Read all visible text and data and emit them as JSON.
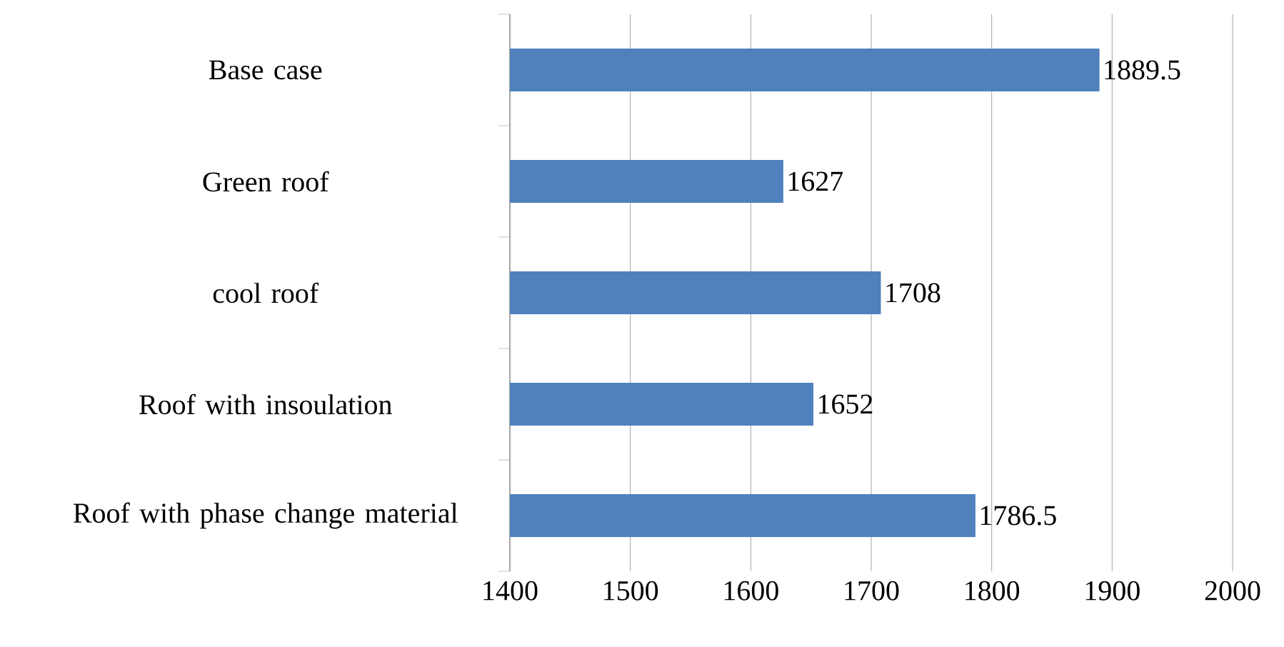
{
  "chart_data": {
    "type": "bar",
    "orientation": "horizontal",
    "categories": [
      "Base case",
      "Green roof",
      "cool roof",
      "Roof with insoulation",
      "Roof with phase change material"
    ],
    "values": [
      1889.5,
      1627,
      1708,
      1652,
      1786.5
    ],
    "color": "#4f81bd",
    "xlim": [
      1400,
      2000
    ],
    "xticks": [
      1400,
      1500,
      1600,
      1700,
      1800,
      1900,
      2000
    ],
    "grid": "x",
    "data_labels": true
  }
}
